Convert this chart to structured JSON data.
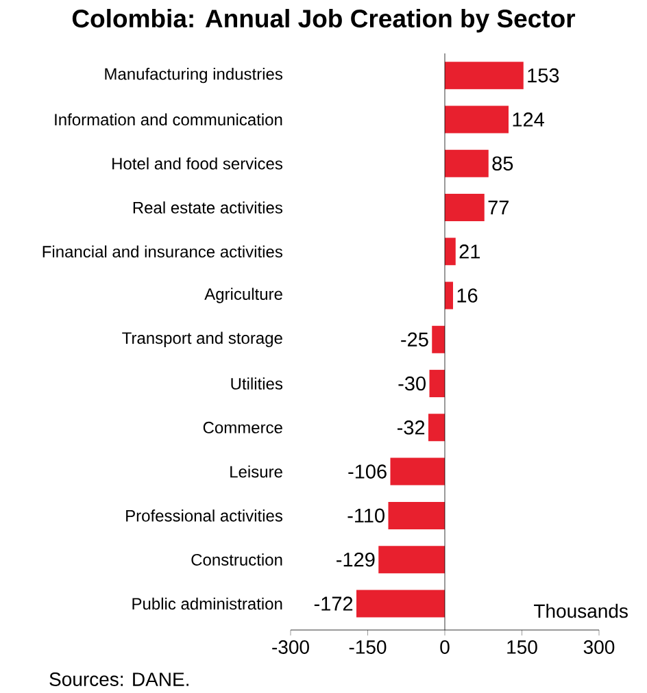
{
  "chart_data": {
    "type": "bar",
    "orientation": "horizontal",
    "title": "Colombia: Annual Job Creation by Sector",
    "categories": [
      "Manufacturing industries",
      "Information and communication",
      "Hotel and food services",
      "Real estate activities",
      "Financial and insurance activities",
      "Agriculture",
      "Transport and storage",
      "Utilities",
      "Commerce",
      "Leisure",
      "Professional activities",
      "Construction",
      "Public administration"
    ],
    "values": [
      153,
      124,
      85,
      77,
      21,
      16,
      -25,
      -30,
      -32,
      -106,
      -110,
      -129,
      -172
    ],
    "color": "#e8202e",
    "data_labels": true,
    "xlim": [
      -300,
      300
    ],
    "xticks": [
      -300,
      -150,
      0,
      150,
      300
    ],
    "annotations": [
      "Thousands",
      "Sources: DANE."
    ]
  }
}
